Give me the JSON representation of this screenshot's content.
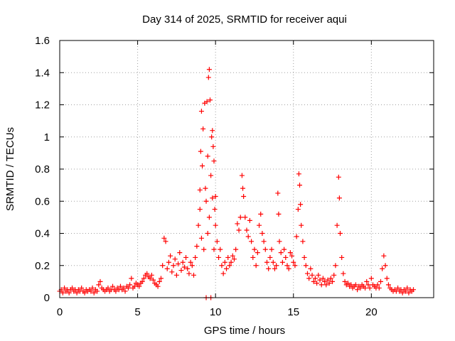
{
  "chart_data": {
    "type": "scatter",
    "title": "Day 314 of 2025, SRMTID for receiver aqui",
    "xlabel": "GPS time / hours",
    "ylabel": "SRMTID / TECUs",
    "xlim": [
      0,
      24
    ],
    "ylim": [
      0,
      1.6
    ],
    "x_ticks": [
      0,
      5,
      10,
      15,
      20
    ],
    "x_tick_labels": [
      "0",
      "5",
      "10",
      "15",
      "20"
    ],
    "y_ticks": [
      0,
      0.2,
      0.4,
      0.6,
      0.8,
      1.0,
      1.2,
      1.4,
      1.6
    ],
    "y_tick_labels": [
      "0",
      "0.2",
      "0.4",
      "0.6",
      "0.8",
      "1",
      "1.2",
      "1.4",
      "1.6"
    ],
    "grid": true,
    "marker": "+",
    "marker_color": "#ff0000",
    "series": [
      {
        "name": "SRMTID",
        "points": [
          [
            0.0,
            0.04
          ],
          [
            0.1,
            0.05
          ],
          [
            0.2,
            0.03
          ],
          [
            0.3,
            0.06
          ],
          [
            0.4,
            0.04
          ],
          [
            0.5,
            0.05
          ],
          [
            0.6,
            0.03
          ],
          [
            0.7,
            0.05
          ],
          [
            0.8,
            0.06
          ],
          [
            0.9,
            0.04
          ],
          [
            1.0,
            0.05
          ],
          [
            1.1,
            0.03
          ],
          [
            1.2,
            0.05
          ],
          [
            1.3,
            0.04
          ],
          [
            1.4,
            0.06
          ],
          [
            1.5,
            0.04
          ],
          [
            1.6,
            0.03
          ],
          [
            1.7,
            0.05
          ],
          [
            1.8,
            0.04
          ],
          [
            1.9,
            0.05
          ],
          [
            2.0,
            0.04
          ],
          [
            2.1,
            0.06
          ],
          [
            2.2,
            0.03
          ],
          [
            2.3,
            0.05
          ],
          [
            2.4,
            0.04
          ],
          [
            2.5,
            0.08
          ],
          [
            2.6,
            0.1
          ],
          [
            2.7,
            0.06
          ],
          [
            2.8,
            0.05
          ],
          [
            2.9,
            0.04
          ],
          [
            3.0,
            0.05
          ],
          [
            3.1,
            0.06
          ],
          [
            3.2,
            0.04
          ],
          [
            3.3,
            0.05
          ],
          [
            3.4,
            0.07
          ],
          [
            3.5,
            0.05
          ],
          [
            3.6,
            0.04
          ],
          [
            3.7,
            0.06
          ],
          [
            3.8,
            0.05
          ],
          [
            3.9,
            0.07
          ],
          [
            4.0,
            0.05
          ],
          [
            4.1,
            0.06
          ],
          [
            4.2,
            0.04
          ],
          [
            4.3,
            0.07
          ],
          [
            4.4,
            0.06
          ],
          [
            4.5,
            0.08
          ],
          [
            4.6,
            0.12
          ],
          [
            4.7,
            0.06
          ],
          [
            4.8,
            0.07
          ],
          [
            4.9,
            0.09
          ],
          [
            5.0,
            0.08
          ],
          [
            5.1,
            0.07
          ],
          [
            5.2,
            0.09
          ],
          [
            5.3,
            0.1
          ],
          [
            5.4,
            0.12
          ],
          [
            5.5,
            0.14
          ],
          [
            5.6,
            0.15
          ],
          [
            5.7,
            0.13
          ],
          [
            5.8,
            0.12
          ],
          [
            5.9,
            0.14
          ],
          [
            6.0,
            0.11
          ],
          [
            6.1,
            0.09
          ],
          [
            6.2,
            0.08
          ],
          [
            6.3,
            0.07
          ],
          [
            6.4,
            0.1
          ],
          [
            6.5,
            0.12
          ],
          [
            6.6,
            0.2
          ],
          [
            6.7,
            0.37
          ],
          [
            6.8,
            0.35
          ],
          [
            6.9,
            0.18
          ],
          [
            7.0,
            0.22
          ],
          [
            7.1,
            0.26
          ],
          [
            7.2,
            0.16
          ],
          [
            7.3,
            0.2
          ],
          [
            7.4,
            0.24
          ],
          [
            7.5,
            0.14
          ],
          [
            7.6,
            0.21
          ],
          [
            7.7,
            0.28
          ],
          [
            7.8,
            0.17
          ],
          [
            7.9,
            0.22
          ],
          [
            8.0,
            0.19
          ],
          [
            8.1,
            0.25
          ],
          [
            8.2,
            0.18
          ],
          [
            8.3,
            0.15
          ],
          [
            8.4,
            0.22
          ],
          [
            8.5,
            0.2
          ],
          [
            8.6,
            0.14
          ],
          [
            8.7,
            0.25
          ],
          [
            8.8,
            0.32
          ],
          [
            8.9,
            0.45
          ],
          [
            9.0,
            0.67
          ],
          [
            9.0,
            0.55
          ],
          [
            9.05,
            0.91
          ],
          [
            9.1,
            1.16
          ],
          [
            9.1,
            0.37
          ],
          [
            9.15,
            0.82
          ],
          [
            9.2,
            1.05
          ],
          [
            9.25,
            0.3
          ],
          [
            9.3,
            1.21
          ],
          [
            9.35,
            0.68
          ],
          [
            9.4,
            0.0
          ],
          [
            9.4,
            0.6
          ],
          [
            9.45,
            1.22
          ],
          [
            9.5,
            0.88
          ],
          [
            9.5,
            0.4
          ],
          [
            9.55,
            1.37
          ],
          [
            9.6,
            1.42
          ],
          [
            9.6,
            0.5
          ],
          [
            9.65,
            1.23
          ],
          [
            9.7,
            0.0
          ],
          [
            9.7,
            0.76
          ],
          [
            9.75,
            1.0
          ],
          [
            9.8,
            0.62
          ],
          [
            9.8,
            1.04
          ],
          [
            9.85,
            0.94
          ],
          [
            9.9,
            0.85
          ],
          [
            9.9,
            0.3
          ],
          [
            9.95,
            0.55
          ],
          [
            10.0,
            0.45
          ],
          [
            10.0,
            0.63
          ],
          [
            10.1,
            0.35
          ],
          [
            10.2,
            0.25
          ],
          [
            10.3,
            0.3
          ],
          [
            10.4,
            0.2
          ],
          [
            10.5,
            0.15
          ],
          [
            10.6,
            0.22
          ],
          [
            10.7,
            0.18
          ],
          [
            10.8,
            0.25
          ],
          [
            10.9,
            0.2
          ],
          [
            11.0,
            0.22
          ],
          [
            11.1,
            0.26
          ],
          [
            11.2,
            0.24
          ],
          [
            11.3,
            0.3
          ],
          [
            11.4,
            0.46
          ],
          [
            11.5,
            0.42
          ],
          [
            11.6,
            0.5
          ],
          [
            11.7,
            0.76
          ],
          [
            11.75,
            0.68
          ],
          [
            11.8,
            0.63
          ],
          [
            11.9,
            0.5
          ],
          [
            12.0,
            0.42
          ],
          [
            12.1,
            0.38
          ],
          [
            12.2,
            0.48
          ],
          [
            12.3,
            0.35
          ],
          [
            12.4,
            0.25
          ],
          [
            12.5,
            0.3
          ],
          [
            12.6,
            0.2
          ],
          [
            12.7,
            0.28
          ],
          [
            12.8,
            0.45
          ],
          [
            12.9,
            0.52
          ],
          [
            13.0,
            0.4
          ],
          [
            13.1,
            0.35
          ],
          [
            13.2,
            0.3
          ],
          [
            13.3,
            0.22
          ],
          [
            13.4,
            0.18
          ],
          [
            13.5,
            0.25
          ],
          [
            13.6,
            0.3
          ],
          [
            13.7,
            0.22
          ],
          [
            13.8,
            0.18
          ],
          [
            13.9,
            0.2
          ],
          [
            14.0,
            0.65
          ],
          [
            14.05,
            0.52
          ],
          [
            14.1,
            0.35
          ],
          [
            14.2,
            0.28
          ],
          [
            14.3,
            0.22
          ],
          [
            14.4,
            0.3
          ],
          [
            14.5,
            0.25
          ],
          [
            14.6,
            0.2
          ],
          [
            14.7,
            0.18
          ],
          [
            14.8,
            0.28
          ],
          [
            14.9,
            0.26
          ],
          [
            15.0,
            0.22
          ],
          [
            15.1,
            0.2
          ],
          [
            15.2,
            0.38
          ],
          [
            15.3,
            0.55
          ],
          [
            15.35,
            0.77
          ],
          [
            15.4,
            0.7
          ],
          [
            15.45,
            0.58
          ],
          [
            15.5,
            0.45
          ],
          [
            15.6,
            0.35
          ],
          [
            15.7,
            0.25
          ],
          [
            15.8,
            0.2
          ],
          [
            15.9,
            0.15
          ],
          [
            16.0,
            0.12
          ],
          [
            16.1,
            0.18
          ],
          [
            16.2,
            0.14
          ],
          [
            16.3,
            0.1
          ],
          [
            16.4,
            0.12
          ],
          [
            16.5,
            0.09
          ],
          [
            16.6,
            0.14
          ],
          [
            16.7,
            0.11
          ],
          [
            16.8,
            0.08
          ],
          [
            16.9,
            0.12
          ],
          [
            17.0,
            0.1
          ],
          [
            17.1,
            0.08
          ],
          [
            17.2,
            0.11
          ],
          [
            17.3,
            0.09
          ],
          [
            17.4,
            0.12
          ],
          [
            17.5,
            0.1
          ],
          [
            17.6,
            0.14
          ],
          [
            17.7,
            0.2
          ],
          [
            17.8,
            0.45
          ],
          [
            17.9,
            0.75
          ],
          [
            17.95,
            0.62
          ],
          [
            18.0,
            0.4
          ],
          [
            18.1,
            0.25
          ],
          [
            18.2,
            0.15
          ],
          [
            18.3,
            0.1
          ],
          [
            18.4,
            0.08
          ],
          [
            18.5,
            0.09
          ],
          [
            18.6,
            0.07
          ],
          [
            18.7,
            0.08
          ],
          [
            18.8,
            0.06
          ],
          [
            18.9,
            0.07
          ],
          [
            19.0,
            0.08
          ],
          [
            19.1,
            0.05
          ],
          [
            19.2,
            0.07
          ],
          [
            19.3,
            0.06
          ],
          [
            19.4,
            0.08
          ],
          [
            19.5,
            0.07
          ],
          [
            19.6,
            0.06
          ],
          [
            19.7,
            0.1
          ],
          [
            19.8,
            0.08
          ],
          [
            19.9,
            0.06
          ],
          [
            20.0,
            0.12
          ],
          [
            20.1,
            0.08
          ],
          [
            20.2,
            0.07
          ],
          [
            20.3,
            0.06
          ],
          [
            20.4,
            0.08
          ],
          [
            20.5,
            0.06
          ],
          [
            20.6,
            0.1
          ],
          [
            20.7,
            0.18
          ],
          [
            20.8,
            0.26
          ],
          [
            20.9,
            0.2
          ],
          [
            21.0,
            0.12
          ],
          [
            21.1,
            0.08
          ],
          [
            21.2,
            0.06
          ],
          [
            21.3,
            0.05
          ],
          [
            21.4,
            0.04
          ],
          [
            21.5,
            0.05
          ],
          [
            21.6,
            0.04
          ],
          [
            21.7,
            0.06
          ],
          [
            21.8,
            0.04
          ],
          [
            21.9,
            0.05
          ],
          [
            22.0,
            0.03
          ],
          [
            22.1,
            0.05
          ],
          [
            22.2,
            0.04
          ],
          [
            22.3,
            0.06
          ],
          [
            22.4,
            0.03
          ],
          [
            22.5,
            0.05
          ],
          [
            22.6,
            0.04
          ],
          [
            22.7,
            0.05
          ]
        ]
      }
    ]
  }
}
